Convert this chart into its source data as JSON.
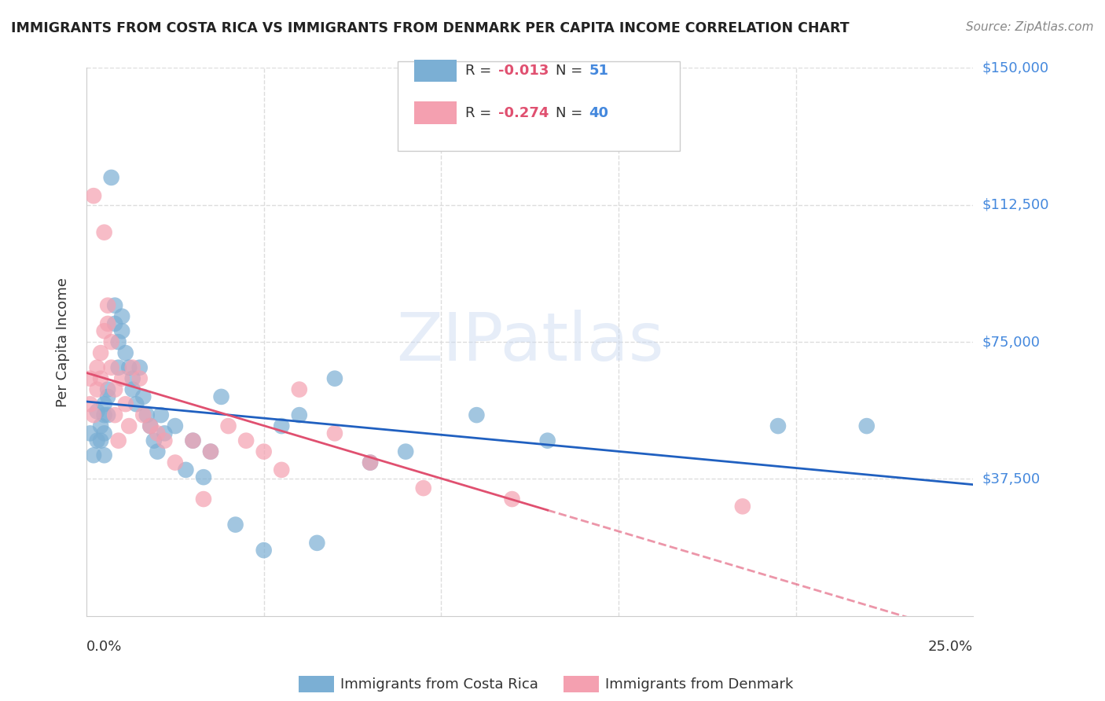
{
  "title": "IMMIGRANTS FROM COSTA RICA VS IMMIGRANTS FROM DENMARK PER CAPITA INCOME CORRELATION CHART",
  "source": "Source: ZipAtlas.com",
  "ylabel": "Per Capita Income",
  "yticks": [
    0,
    37500,
    75000,
    112500,
    150000
  ],
  "ytick_labels": [
    "",
    "$37,500",
    "$75,000",
    "$112,500",
    "$150,000"
  ],
  "xlim": [
    0.0,
    0.25
  ],
  "ylim": [
    0,
    150000
  ],
  "costa_rica_R": -0.013,
  "costa_rica_N": 51,
  "denmark_R": -0.274,
  "denmark_N": 40,
  "costa_rica_color": "#7bafd4",
  "denmark_color": "#f4a0b0",
  "costa_rica_line_color": "#2060c0",
  "denmark_line_color": "#e05070",
  "background_color": "#ffffff",
  "grid_color": "#dddddd",
  "watermark": "ZIPatlas",
  "cr_x": [
    0.001,
    0.002,
    0.003,
    0.003,
    0.004,
    0.004,
    0.005,
    0.005,
    0.005,
    0.005,
    0.006,
    0.006,
    0.006,
    0.007,
    0.008,
    0.008,
    0.009,
    0.009,
    0.01,
    0.01,
    0.011,
    0.012,
    0.013,
    0.013,
    0.014,
    0.015,
    0.016,
    0.017,
    0.018,
    0.019,
    0.02,
    0.021,
    0.022,
    0.025,
    0.028,
    0.03,
    0.033,
    0.035,
    0.038,
    0.042,
    0.05,
    0.055,
    0.06,
    0.065,
    0.07,
    0.08,
    0.09,
    0.11,
    0.13,
    0.195,
    0.22
  ],
  "cr_y": [
    50000,
    44000,
    56000,
    48000,
    52000,
    48000,
    58000,
    55000,
    50000,
    44000,
    62000,
    60000,
    55000,
    120000,
    85000,
    80000,
    75000,
    68000,
    82000,
    78000,
    72000,
    68000,
    65000,
    62000,
    58000,
    68000,
    60000,
    55000,
    52000,
    48000,
    45000,
    55000,
    50000,
    52000,
    40000,
    48000,
    38000,
    45000,
    60000,
    25000,
    18000,
    52000,
    55000,
    20000,
    65000,
    42000,
    45000,
    55000,
    48000,
    52000,
    52000
  ],
  "dk_x": [
    0.001,
    0.001,
    0.002,
    0.002,
    0.003,
    0.003,
    0.004,
    0.004,
    0.005,
    0.005,
    0.006,
    0.006,
    0.007,
    0.007,
    0.008,
    0.008,
    0.009,
    0.01,
    0.011,
    0.012,
    0.013,
    0.015,
    0.016,
    0.018,
    0.02,
    0.022,
    0.025,
    0.03,
    0.033,
    0.035,
    0.04,
    0.045,
    0.05,
    0.055,
    0.06,
    0.07,
    0.08,
    0.095,
    0.12,
    0.185
  ],
  "dk_y": [
    65000,
    58000,
    55000,
    115000,
    62000,
    68000,
    72000,
    65000,
    78000,
    105000,
    85000,
    80000,
    75000,
    68000,
    62000,
    55000,
    48000,
    65000,
    58000,
    52000,
    68000,
    65000,
    55000,
    52000,
    50000,
    48000,
    42000,
    48000,
    32000,
    45000,
    52000,
    48000,
    45000,
    40000,
    62000,
    50000,
    42000,
    35000,
    32000,
    30000
  ]
}
